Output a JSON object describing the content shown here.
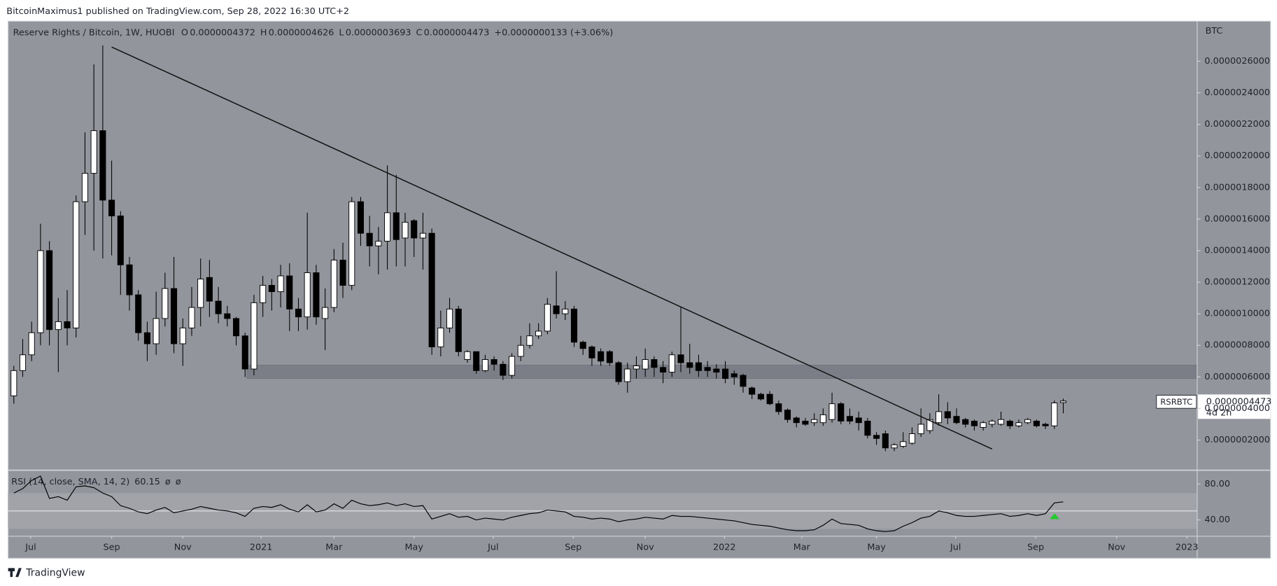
{
  "header": {
    "published": "BitcoinMaximus1 published on TradingView.com, Sep 28, 2022 16:30 UTC+2",
    "footer": "TradingView"
  },
  "chart_data": [
    {
      "type": "candlestick",
      "title": "Reserve Rights / Bitcoin, 1W, HUOBI",
      "ohlc_legend": [
        {
          "key": "O",
          "value": "0.0000004372"
        },
        {
          "key": "H",
          "value": "0.0000004626"
        },
        {
          "key": "L",
          "value": "0.0000003693"
        },
        {
          "key": "C",
          "value": "0.0000004473"
        }
      ],
      "change": "+0.0000000133 (+3.06%)",
      "y_axis_label": "BTC",
      "symbol": "RSRBTC",
      "last_price_label": "0.0000004473",
      "countdown": "4d 2h",
      "up_color": "#ffffff",
      "down_color": "#000000",
      "wick_color": "#000000",
      "ylim": [
        1.9e-08,
        2.843e-06
      ],
      "yticks": [
        {
          "value": 2e-07,
          "label": "0.0000002000"
        },
        {
          "value": 4e-07,
          "label": "0.0000004000"
        },
        {
          "value": 6e-07,
          "label": "0.0000006000"
        },
        {
          "value": 8e-07,
          "label": "0.0000008000"
        },
        {
          "value": 1e-06,
          "label": "0.0000010000"
        },
        {
          "value": 1.2e-06,
          "label": "0.0000012000"
        },
        {
          "value": 1.4e-06,
          "label": "0.0000014000"
        },
        {
          "value": 1.6e-06,
          "label": "0.0000016000"
        },
        {
          "value": 1.8e-06,
          "label": "0.0000018000"
        },
        {
          "value": 2e-06,
          "label": "0.0000020000"
        },
        {
          "value": 2.2e-06,
          "label": "0.0000022000"
        },
        {
          "value": 2.4e-06,
          "label": "0.0000024000"
        },
        {
          "value": 2.6e-06,
          "label": "0.0000026000"
        }
      ],
      "xlim": [
        -0.64,
        133.06
      ],
      "xticks": [
        {
          "value": 1.9,
          "label": "Jul"
        },
        {
          "value": 11.0,
          "label": "Sep"
        },
        {
          "value": 19.0,
          "label": "Nov"
        },
        {
          "value": 27.8,
          "label": "2021"
        },
        {
          "value": 36.0,
          "label": "Mar"
        },
        {
          "value": 45.0,
          "label": "May"
        },
        {
          "value": 53.9,
          "label": "Jul"
        },
        {
          "value": 62.9,
          "label": "Sep"
        },
        {
          "value": 71.0,
          "label": "Nov"
        },
        {
          "value": 79.9,
          "label": "2022"
        },
        {
          "value": 88.6,
          "label": "Mar"
        },
        {
          "value": 97.0,
          "label": "May"
        },
        {
          "value": 105.9,
          "label": "Jul"
        },
        {
          "value": 114.9,
          "label": "Sep"
        },
        {
          "value": 124.0,
          "label": "Nov"
        },
        {
          "value": 131.9,
          "label": "2023"
        }
      ],
      "grid": false,
      "zone": {
        "x_start": 26.2,
        "low": 5.9e-07,
        "high": 6.75e-07
      },
      "trendline": [
        [
          11,
          2.69e-06
        ],
        [
          110,
          1.43e-07
        ]
      ],
      "candles": [
        [
          4.8e-07,
          6.7e-07,
          4.3e-07,
          6.4e-07
        ],
        [
          6.4e-07,
          8.4e-07,
          6e-07,
          7.4e-07
        ],
        [
          7.4e-07,
          9.5e-07,
          7e-07,
          8.8e-07
        ],
        [
          8.8e-07,
          1.57e-06,
          8e-07,
          1.4e-06
        ],
        [
          1.4e-06,
          1.46e-06,
          8e-07,
          9e-07
        ],
        [
          9e-07,
          1.1e-06,
          6.3e-07,
          9.5e-07
        ],
        [
          9.5e-07,
          1.15e-06,
          8e-07,
          9.1e-07
        ],
        [
          9.1e-07,
          1.75e-06,
          8.5e-07,
          1.71e-06
        ],
        [
          1.71e-06,
          2.15e-06,
          1.5e-06,
          1.89e-06
        ],
        [
          1.89e-06,
          2.58e-06,
          1.4e-06,
          2.16e-06
        ],
        [
          2.16e-06,
          2.7e-06,
          1.35e-06,
          1.72e-06
        ],
        [
          1.72e-06,
          1.97e-06,
          1.37e-06,
          1.62e-06
        ],
        [
          1.62e-06,
          1.65e-06,
          1.12e-06,
          1.31e-06
        ],
        [
          1.31e-06,
          1.36e-06,
          1.02e-06,
          1.12e-06
        ],
        [
          1.12e-06,
          1.15e-06,
          8.3e-07,
          8.8e-07
        ],
        [
          8.8e-07,
          9.5e-07,
          7e-07,
          8.1e-07
        ],
        [
          8.1e-07,
          1.14e-06,
          7.4e-07,
          9.7e-07
        ],
        [
          9.7e-07,
          1.26e-06,
          9.2e-07,
          1.16e-06
        ],
        [
          1.16e-06,
          1.36e-06,
          7.5e-07,
          8.1e-07
        ],
        [
          8.1e-07,
          9.7e-07,
          6.7e-07,
          9.1e-07
        ],
        [
          9.1e-07,
          1.17e-06,
          8.6e-07,
          1.04e-06
        ],
        [
          1.04e-06,
          1.35e-06,
          9.2e-07,
          1.22e-06
        ],
        [
          1.23e-06,
          1.34e-06,
          9.8e-07,
          1.08e-06
        ],
        [
          1.08e-06,
          1.17e-06,
          9.4e-07,
          1e-06
        ],
        [
          1e-06,
          1.05e-06,
          9.2e-07,
          9.7e-07
        ],
        [
          9.7e-07,
          9.8e-07,
          8e-07,
          8.6e-07
        ],
        [
          8.6e-07,
          8.8e-07,
          6e-07,
          6.5e-07
        ],
        [
          6.5e-07,
          1.12e-06,
          6.1e-07,
          1.07e-06
        ],
        [
          1.07e-06,
          1.24e-06,
          9.8e-07,
          1.18e-06
        ],
        [
          1.18e-06,
          1.22e-06,
          1.02e-06,
          1.14e-06
        ],
        [
          1.14e-06,
          1.31e-06,
          1.04e-06,
          1.24e-06
        ],
        [
          1.24e-06,
          1.32e-06,
          8.9e-07,
          1.03e-06
        ],
        [
          1.03e-06,
          1.1e-06,
          8.9e-07,
          9.8e-07
        ],
        [
          9.8e-07,
          1.64e-06,
          9e-07,
          1.26e-06
        ],
        [
          1.26e-06,
          1.31e-06,
          9.3e-07,
          9.8e-07
        ],
        [
          9.7e-07,
          1.16e-06,
          7.7e-07,
          1.04e-06
        ],
        [
          1.04e-06,
          1.41e-06,
          1.01e-06,
          1.34e-06
        ],
        [
          1.34e-06,
          1.45e-06,
          1.1e-06,
          1.18e-06
        ],
        [
          1.18e-06,
          1.74e-06,
          1.15e-06,
          1.71e-06
        ],
        [
          1.71e-06,
          1.74e-06,
          1.43e-06,
          1.51e-06
        ],
        [
          1.51e-06,
          1.62e-06,
          1.3e-06,
          1.43e-06
        ],
        [
          1.43e-06,
          1.55e-06,
          1.25e-06,
          1.46e-06
        ],
        [
          1.46e-06,
          1.94e-06,
          1.28e-06,
          1.64e-06
        ],
        [
          1.64e-06,
          1.88e-06,
          1.3e-06,
          1.47e-06
        ],
        [
          1.48e-06,
          1.64e-06,
          1.3e-06,
          1.58e-06
        ],
        [
          1.59e-06,
          1.6e-06,
          1.36e-06,
          1.48e-06
        ],
        [
          1.48e-06,
          1.64e-06,
          1.28e-06,
          1.51e-06
        ],
        [
          1.51e-06,
          1.54e-06,
          7.4e-07,
          7.9e-07
        ],
        [
          7.9e-07,
          1.02e-06,
          7.3e-07,
          9.1e-07
        ],
        [
          9.1e-07,
          1.1e-06,
          8.8e-07,
          1.03e-06
        ],
        [
          1.03e-06,
          1.05e-06,
          7.3e-07,
          7.6e-07
        ],
        [
          7.1e-07,
          7.7e-07,
          6.9e-07,
          7.6e-07
        ],
        [
          7.6e-07,
          7.6e-07,
          6.2e-07,
          6.4e-07
        ],
        [
          6.4e-07,
          7.4e-07,
          6.3e-07,
          7.1e-07
        ],
        [
          7.1e-07,
          7.3e-07,
          6.4e-07,
          6.8e-07
        ],
        [
          6.8e-07,
          7e-07,
          5.8e-07,
          6.1e-07
        ],
        [
          6.1e-07,
          7.5e-07,
          5.9e-07,
          7.3e-07
        ],
        [
          7.3e-07,
          8.6e-07,
          7e-07,
          8e-07
        ],
        [
          8e-07,
          9.4e-07,
          7.8e-07,
          8.6e-07
        ],
        [
          8.6e-07,
          9.4e-07,
          8.4e-07,
          8.9e-07
        ],
        [
          8.9e-07,
          1.1e-06,
          8.7e-07,
          1.06e-06
        ],
        [
          1.05e-06,
          1.27e-06,
          9.7e-07,
          1e-06
        ],
        [
          1e-06,
          1.08e-06,
          9.6e-07,
          1.03e-06
        ],
        [
          1.03e-06,
          1.05e-06,
          7.9e-07,
          8.2e-07
        ],
        [
          8.2e-07,
          8.3e-07,
          7.4e-07,
          7.8e-07
        ],
        [
          7.9e-07,
          8e-07,
          6.7e-07,
          7.2e-07
        ],
        [
          7.6e-07,
          7.8e-07,
          6.7e-07,
          7e-07
        ],
        [
          7.6e-07,
          7.7e-07,
          6.7e-07,
          6.9e-07
        ],
        [
          6.9e-07,
          7e-07,
          5.5e-07,
          5.7e-07
        ],
        [
          5.7e-07,
          6.9e-07,
          5e-07,
          6.5e-07
        ],
        [
          6.5e-07,
          7.3e-07,
          5.9e-07,
          6.7e-07
        ],
        [
          6.5e-07,
          7.8e-07,
          6e-07,
          7.1e-07
        ],
        [
          7.1e-07,
          7.3e-07,
          6e-07,
          6.6e-07
        ],
        [
          6.6e-07,
          7e-07,
          5.6e-07,
          6.3e-07
        ],
        [
          6.3e-07,
          7.6e-07,
          6e-07,
          7.4e-07
        ],
        [
          7.4e-07,
          1.04e-06,
          6.3e-07,
          6.9e-07
        ],
        [
          6.9e-07,
          8.1e-07,
          6.2e-07,
          6.6e-07
        ],
        [
          6.9e-07,
          7.4e-07,
          6e-07,
          6.4e-07
        ],
        [
          6.6e-07,
          7e-07,
          6e-07,
          6.4e-07
        ],
        [
          6.5e-07,
          6.8e-07,
          5.9e-07,
          6.3e-07
        ],
        [
          6.5e-07,
          7e-07,
          5.6e-07,
          5.9e-07
        ],
        [
          6.2e-07,
          6.4e-07,
          5.5e-07,
          6e-07
        ],
        [
          6.1e-07,
          6.2e-07,
          5e-07,
          5.4e-07
        ],
        [
          5.3e-07,
          5.4e-07,
          4.6e-07,
          4.9e-07
        ],
        [
          4.9e-07,
          5e-07,
          4.5e-07,
          4.6e-07
        ],
        [
          4.9e-07,
          5.1e-07,
          4.2e-07,
          4.3e-07
        ],
        [
          4.3e-07,
          4.5e-07,
          3.6e-07,
          3.8e-07
        ],
        [
          3.9e-07,
          4e-07,
          3.1e-07,
          3.3e-07
        ],
        [
          3.4e-07,
          3.5e-07,
          2.8e-07,
          3.1e-07
        ],
        [
          3.2e-07,
          3.4e-07,
          2.9e-07,
          3e-07
        ],
        [
          3.1e-07,
          3.7e-07,
          2.9e-07,
          3.3e-07
        ],
        [
          3.1e-07,
          4e-07,
          2.9e-07,
          3.6e-07
        ],
        [
          3.3e-07,
          5e-07,
          3.1e-07,
          4.3e-07
        ],
        [
          4.3e-07,
          4.4e-07,
          3e-07,
          3.2e-07
        ],
        [
          3.5e-07,
          4e-07,
          3e-07,
          3.2e-07
        ],
        [
          3.4e-07,
          3.8e-07,
          2.6e-07,
          3.1e-07
        ],
        [
          3.2e-07,
          3.4e-07,
          2.1e-07,
          2.3e-07
        ],
        [
          2.3e-07,
          2.5e-07,
          1.7e-07,
          2.1e-07
        ],
        [
          2.4e-07,
          2.6e-07,
          1.3e-07,
          1.5e-07
        ],
        [
          1.5e-07,
          1.8e-07,
          1.3e-07,
          1.7e-07
        ],
        [
          1.6e-07,
          2.5e-07,
          1.5e-07,
          1.9e-07
        ],
        [
          1.8e-07,
          2.8e-07,
          1.7e-07,
          2.4e-07
        ],
        [
          2.4e-07,
          4e-07,
          2.2e-07,
          3e-07
        ],
        [
          2.6e-07,
          3.7e-07,
          2.4e-07,
          3.3e-07
        ],
        [
          3.1e-07,
          4.9e-07,
          2.9e-07,
          3.8e-07
        ],
        [
          3.8e-07,
          4.4e-07,
          3e-07,
          3.4e-07
        ],
        [
          3.5e-07,
          4e-07,
          3e-07,
          3.1e-07
        ],
        [
          3.3e-07,
          3.4e-07,
          2.8e-07,
          3e-07
        ],
        [
          3.2e-07,
          3.3e-07,
          2.6e-07,
          2.9e-07
        ],
        [
          2.8e-07,
          3.2e-07,
          2.6e-07,
          3.1e-07
        ],
        [
          3e-07,
          3.3e-07,
          2.8e-07,
          3.2e-07
        ],
        [
          3e-07,
          3.8e-07,
          2.9e-07,
          3.3e-07
        ],
        [
          3.2e-07,
          3.3e-07,
          2.7e-07,
          2.9e-07
        ],
        [
          2.9e-07,
          3.3e-07,
          2.8e-07,
          3.1e-07
        ],
        [
          3.1e-07,
          3.4e-07,
          3e-07,
          3.3e-07
        ],
        [
          3.2e-07,
          3.3e-07,
          2.8e-07,
          2.9e-07
        ],
        [
          3e-07,
          3.1e-07,
          2.7e-07,
          2.9e-07
        ],
        [
          2.9e-07,
          4.5e-07,
          2.7e-07,
          4.35e-07
        ],
        [
          4.372e-07,
          4.626e-07,
          3.693e-07,
          4.473e-07
        ]
      ]
    },
    {
      "type": "line",
      "title": "RSI (14, close, SMA, 14, 2)",
      "extra_labels": [
        "ø",
        "ø"
      ],
      "color": "#000000",
      "ylim": [
        21.8,
        94.5
      ],
      "yticks": [
        {
          "value": 80,
          "label": "80.00"
        },
        {
          "value": 40,
          "label": "40.00"
        }
      ],
      "band": [
        30,
        70
      ],
      "midline": 50,
      "values": [
        70,
        75,
        84,
        89,
        64,
        66,
        62,
        77,
        78,
        76,
        70,
        66,
        56,
        53,
        49,
        47,
        51,
        54,
        48,
        50,
        52,
        55,
        53,
        51,
        50,
        48,
        44,
        53,
        55,
        54,
        57,
        52,
        49,
        57,
        49,
        51,
        58,
        53,
        62,
        58,
        56,
        57,
        59,
        56,
        58,
        55,
        56,
        41,
        44,
        47,
        43,
        44,
        40,
        42,
        41,
        40,
        43,
        45,
        47,
        48,
        51,
        50,
        49,
        44,
        43,
        41,
        42,
        41,
        38,
        40,
        41,
        43,
        42,
        41,
        45,
        44,
        44,
        43,
        42,
        41,
        40,
        39,
        37,
        35,
        34,
        33,
        31,
        29,
        28,
        28,
        29,
        34,
        41,
        36,
        35,
        34,
        30,
        28,
        27,
        28,
        33,
        37,
        42,
        44,
        50,
        48,
        45,
        44,
        44,
        45,
        46,
        47,
        44,
        45,
        47,
        45,
        47,
        59,
        60.15
      ]
    }
  ]
}
